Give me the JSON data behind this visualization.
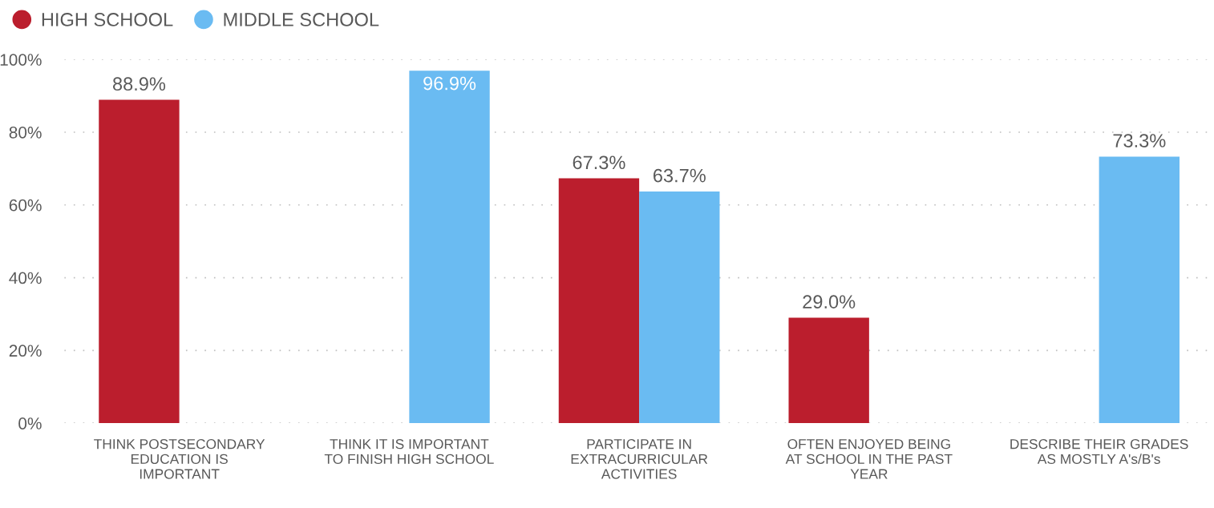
{
  "chart_data": {
    "type": "bar",
    "categories": [
      "THINK POSTSECONDARY\nEDUCATION IS\nIMPORTANT",
      "THINK IT IS IMPORTANT\nTO FINISH HIGH SCHOOL",
      "PARTICIPATE IN\nEXTRACURRICULAR\nACTIVITIES",
      "OFTEN ENJOYED BEING\nAT SCHOOL IN THE PAST\nYEAR",
      "DESCRIBE THEIR GRADES\nAS MOSTLY A's/B's"
    ],
    "series": [
      {
        "name": "HIGH SCHOOL",
        "color": "#bb1e2d",
        "values": [
          88.9,
          null,
          67.3,
          29.0,
          null
        ],
        "value_labels": [
          "88.9%",
          null,
          "67.3%",
          "29.0%",
          null
        ]
      },
      {
        "name": "MIDDLE SCHOOL",
        "color": "#6abbf2",
        "values": [
          null,
          96.9,
          63.7,
          null,
          73.3
        ],
        "value_labels": [
          null,
          "96.9%",
          "63.7%",
          null,
          "73.3%"
        ]
      }
    ],
    "ylim": [
      0,
      100
    ],
    "yticks": [
      {
        "value": 0,
        "label": "0%"
      },
      {
        "value": 20,
        "label": "20%"
      },
      {
        "value": 40,
        "label": "40%"
      },
      {
        "value": 60,
        "label": "60%"
      },
      {
        "value": 80,
        "label": "80%"
      },
      {
        "value": 100,
        "label": "100%"
      }
    ],
    "grid": "y",
    "legend": "top left",
    "data_labels": true
  }
}
